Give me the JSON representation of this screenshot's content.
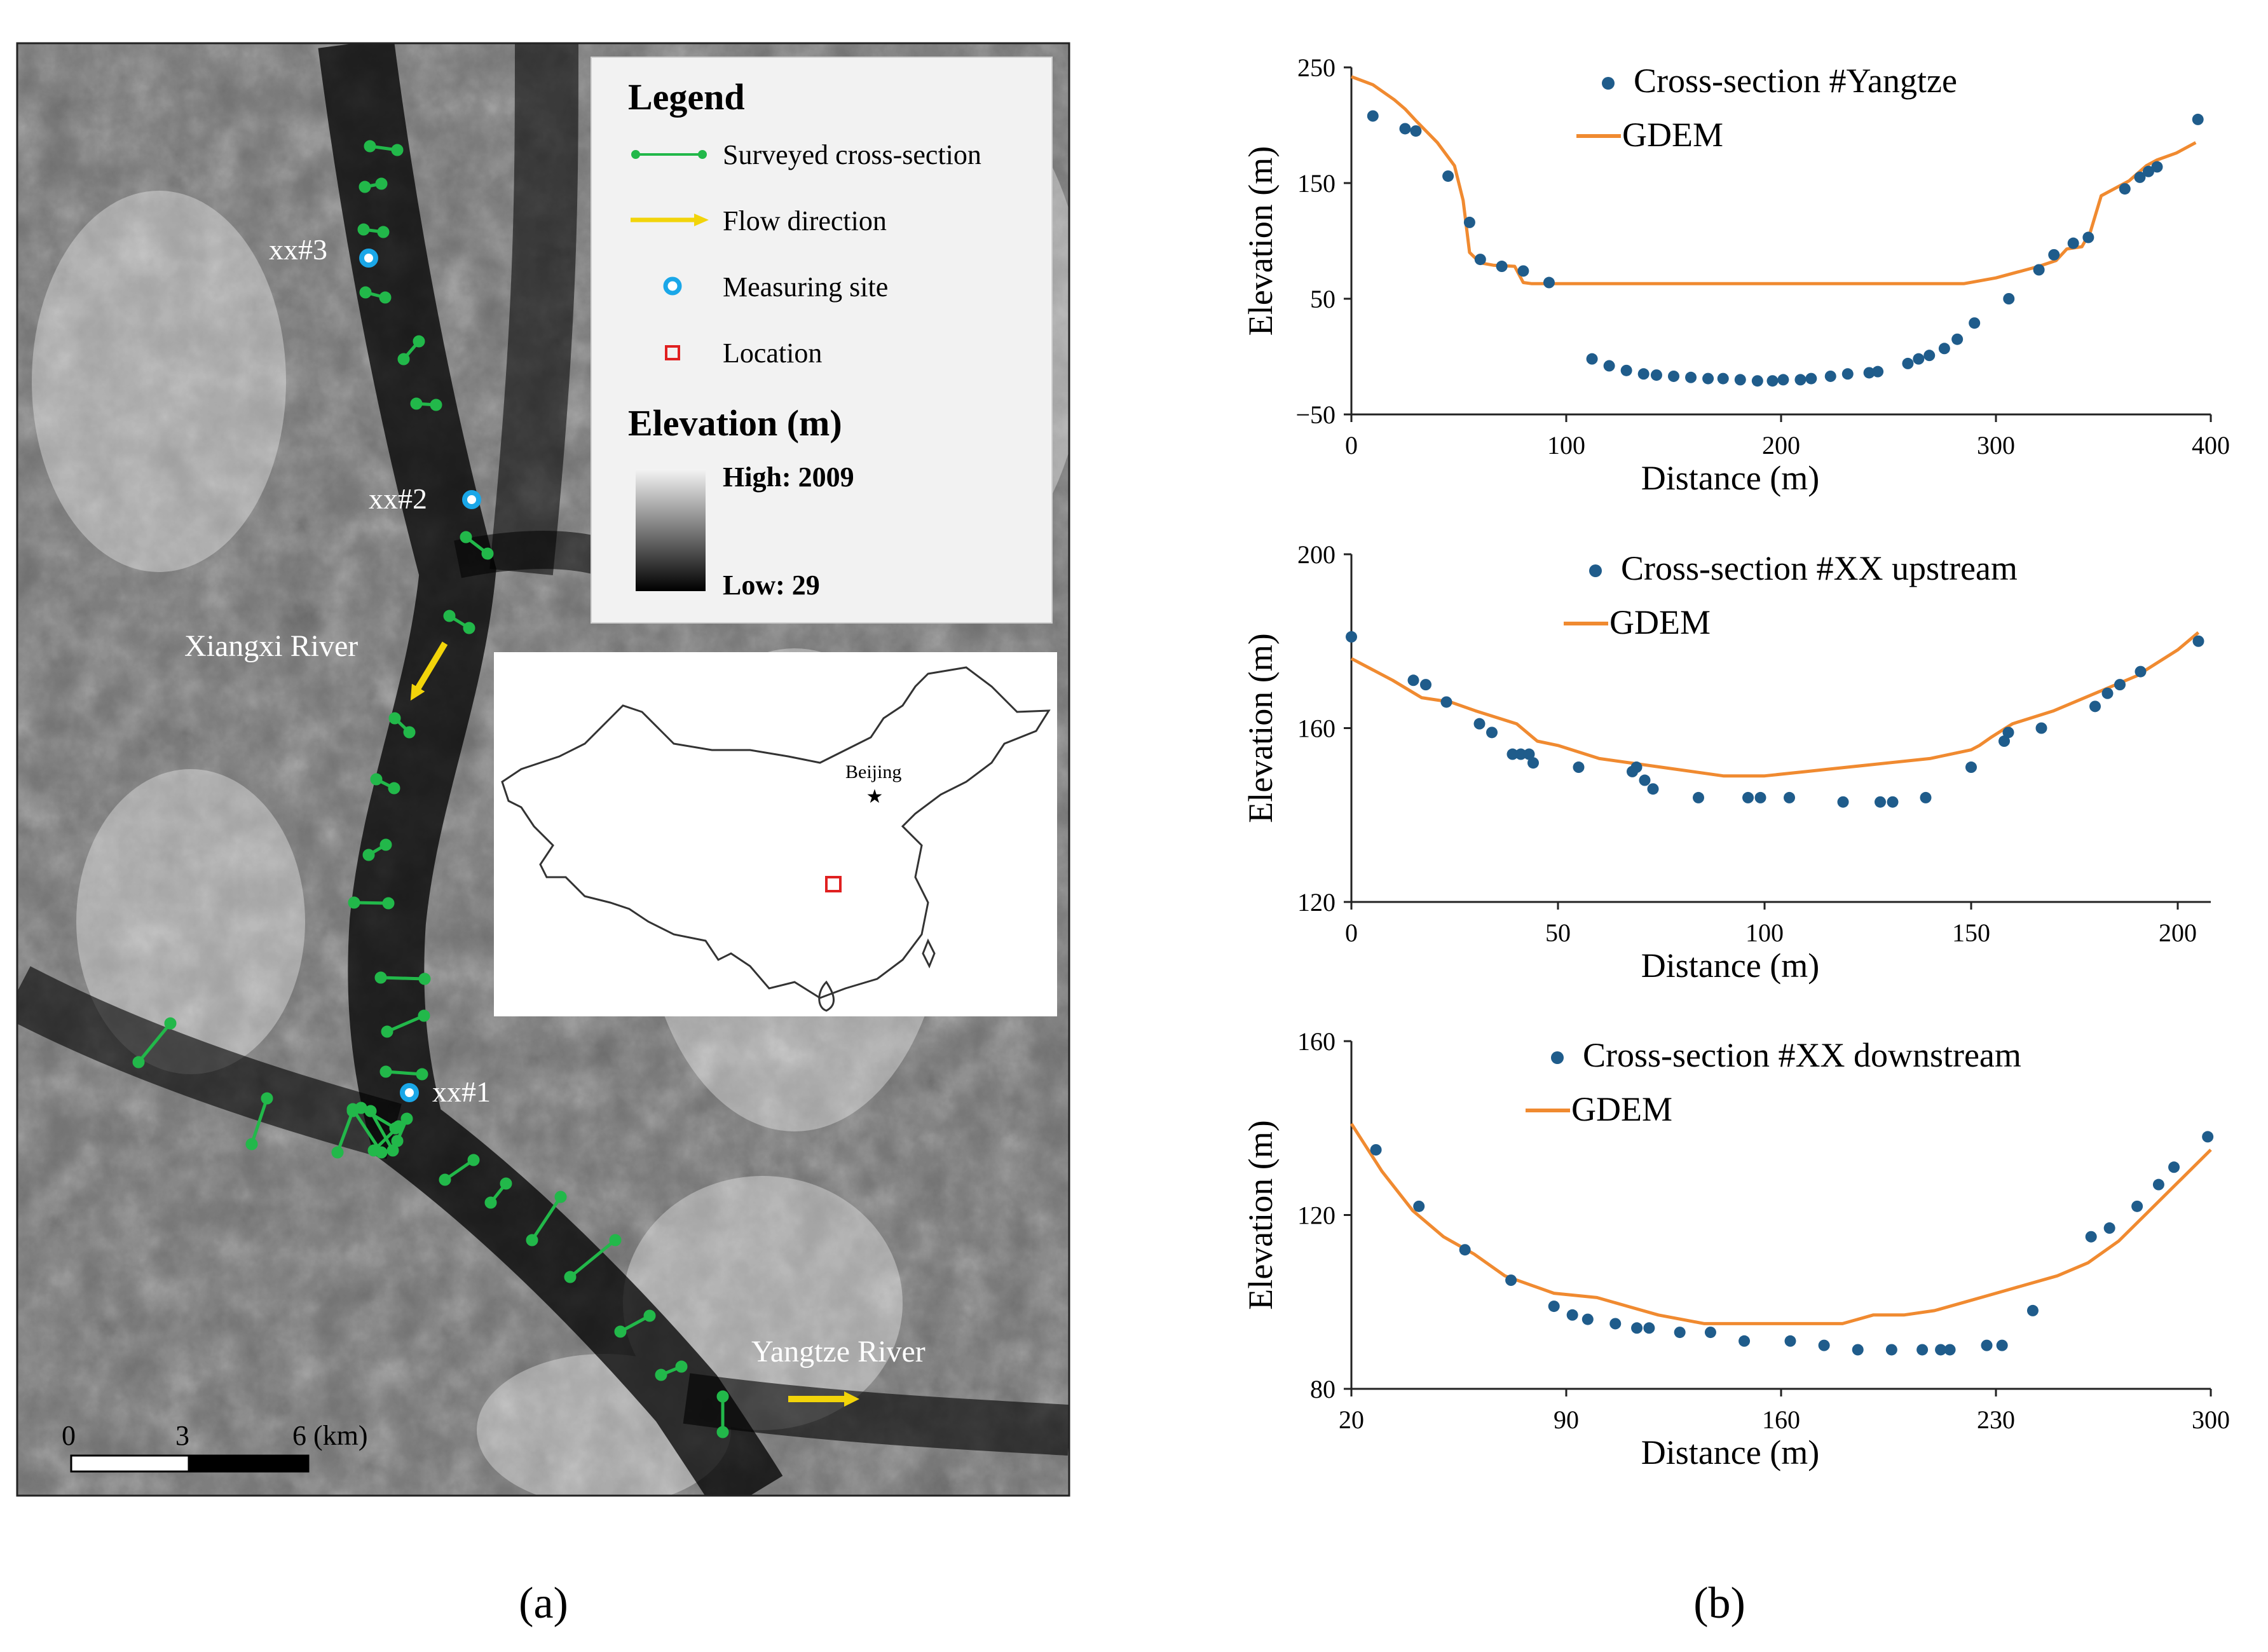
{
  "panel_a": {
    "label": "(a)",
    "legend": {
      "title": "Legend",
      "items": [
        {
          "label": "Surveyed cross-section",
          "icon": "cross-section-line-icon",
          "color": "#22b84a"
        },
        {
          "label": "Flow direction",
          "icon": "flow-arrow-icon",
          "color": "#f2d40a"
        },
        {
          "label": "Measuring site",
          "icon": "measuring-site-icon",
          "color": "#1aa7e8"
        },
        {
          "label": "Location",
          "icon": "location-square-icon",
          "color": "#e02020"
        }
      ],
      "elevation_title": "Elevation (m)",
      "elevation_high": "High: 2009",
      "elevation_low": "Low: 29"
    },
    "sites": [
      "xx#3",
      "xx#2",
      "xx#1"
    ],
    "rivers": {
      "xiangxi": "Xiangxi River",
      "yangtze": "Yangtze River"
    },
    "inset_city": "Beijing",
    "scalebar": {
      "t0": "0",
      "t1": "3",
      "t2": "6 (km)"
    }
  },
  "panel_b": {
    "label": "(b)"
  },
  "colors": {
    "points": "#1f5c8b",
    "line": "#f08a30",
    "section": "#22b84a",
    "site": "#1aa7e8",
    "arrow": "#f2d40a"
  },
  "chart_data": [
    {
      "type": "scatter",
      "title": "",
      "xlabel": "Distance (m)",
      "ylabel": "Elevation (m)",
      "xlim": [
        0,
        400
      ],
      "ylim": [
        -50,
        250
      ],
      "xticks": [
        0,
        100,
        200,
        300,
        400
      ],
      "yticks": [
        -50,
        50,
        150,
        250
      ],
      "ytick_labels": [
        "−50",
        "50",
        "150",
        "250"
      ],
      "series": [
        {
          "name": "Cross-section #Yangtze",
          "kind": "points",
          "x": [
            10,
            25,
            30,
            45,
            55,
            60,
            70,
            80,
            92,
            112,
            120,
            128,
            136,
            142,
            150,
            158,
            166,
            173,
            181,
            189,
            196,
            201,
            209,
            214,
            223,
            231,
            241,
            245,
            259,
            264,
            269,
            276,
            282,
            290,
            306,
            320,
            327,
            336,
            343,
            360,
            367,
            371,
            375,
            394
          ],
          "y": [
            208,
            197,
            195,
            156,
            116,
            84,
            78,
            74,
            64,
            -2,
            -8,
            -12,
            -15,
            -16,
            -17,
            -18,
            -19,
            -19,
            -20,
            -21,
            -21,
            -20,
            -20,
            -19,
            -17,
            -15,
            -14,
            -13,
            -6,
            -2,
            1,
            7,
            15,
            29,
            50,
            75,
            88,
            98,
            103,
            145,
            155,
            160,
            164,
            205
          ]
        },
        {
          "name": "GDEM",
          "kind": "line",
          "x": [
            0,
            10,
            20,
            25,
            30,
            40,
            48,
            52,
            55,
            60,
            66,
            76,
            80,
            84,
            100,
            150,
            200,
            250,
            285,
            300,
            310,
            320,
            328,
            333,
            340,
            344,
            349,
            362,
            370,
            375,
            384,
            393
          ],
          "y": [
            242,
            235,
            222,
            214,
            204,
            185,
            165,
            135,
            90,
            81,
            79,
            78,
            64,
            63,
            63,
            63,
            63,
            63,
            63,
            68,
            73,
            78,
            83,
            93,
            95,
            108,
            139,
            152,
            165,
            170,
            176,
            185
          ]
        }
      ]
    },
    {
      "type": "scatter",
      "title": "",
      "xlabel": "Distance (m)",
      "ylabel": "Elevation (m)",
      "xlim": [
        0,
        208
      ],
      "ylim": [
        120,
        200
      ],
      "xticks": [
        0,
        50,
        100,
        150,
        200
      ],
      "yticks": [
        120,
        160,
        200
      ],
      "series": [
        {
          "name": "Cross-section #XX upstream",
          "kind": "points",
          "x": [
            0,
            15,
            18,
            23,
            31,
            34,
            39,
            41,
            43,
            44,
            55,
            68,
            69,
            71,
            73,
            84,
            96,
            99,
            106,
            119,
            128,
            131,
            139,
            150,
            158,
            159,
            167,
            180,
            183,
            186,
            191,
            205
          ],
          "y": [
            181,
            171,
            170,
            166,
            161,
            159,
            154,
            154,
            154,
            152,
            151,
            150,
            151,
            148,
            146,
            144,
            144,
            144,
            144,
            143,
            143,
            143,
            144,
            151,
            157,
            159,
            160,
            165,
            168,
            170,
            173,
            180
          ]
        },
        {
          "name": "GDEM",
          "kind": "line",
          "x": [
            0,
            10,
            17,
            24,
            30,
            40,
            45,
            50,
            60,
            75,
            90,
            100,
            110,
            120,
            130,
            140,
            150,
            152,
            155,
            160,
            170,
            180,
            190,
            200,
            205
          ],
          "y": [
            176,
            171,
            167,
            166,
            164,
            161,
            157,
            156,
            153,
            151,
            149,
            149,
            150,
            151,
            152,
            153,
            155,
            156,
            158,
            161,
            164,
            168,
            172,
            178,
            182
          ]
        }
      ]
    },
    {
      "type": "scatter",
      "title": "",
      "xlabel": "Distance (m)",
      "ylabel": "Elevation (m)",
      "xlim": [
        20,
        300
      ],
      "ylim": [
        80,
        160
      ],
      "xticks": [
        20,
        90,
        160,
        230,
        300
      ],
      "yticks": [
        80,
        120,
        160
      ],
      "series": [
        {
          "name": "Cross-section #XX downstream",
          "kind": "points",
          "x": [
            28,
            42,
            57,
            72,
            86,
            92,
            97,
            106,
            113,
            117,
            127,
            137,
            148,
            163,
            174,
            185,
            196,
            206,
            212,
            215,
            227,
            232,
            242,
            261,
            267,
            276,
            283,
            288,
            299
          ],
          "y": [
            135,
            122,
            112,
            105,
            99,
            97,
            96,
            95,
            94,
            94,
            93,
            93,
            91,
            91,
            90,
            89,
            89,
            89,
            89,
            89,
            90,
            90,
            98,
            115,
            117,
            122,
            127,
            131,
            138
          ]
        },
        {
          "name": "GDEM",
          "kind": "line",
          "x": [
            20,
            30,
            40,
            50,
            60,
            70,
            86,
            100,
            110,
            120,
            135,
            150,
            165,
            180,
            190,
            200,
            210,
            220,
            230,
            240,
            250,
            260,
            270,
            280,
            290,
            300
          ],
          "y": [
            141,
            130,
            121,
            115,
            111,
            106,
            102,
            101,
            99,
            97,
            95,
            95,
            95,
            95,
            97,
            97,
            98,
            100,
            102,
            104,
            106,
            109,
            114,
            121,
            128,
            135
          ]
        }
      ]
    }
  ]
}
